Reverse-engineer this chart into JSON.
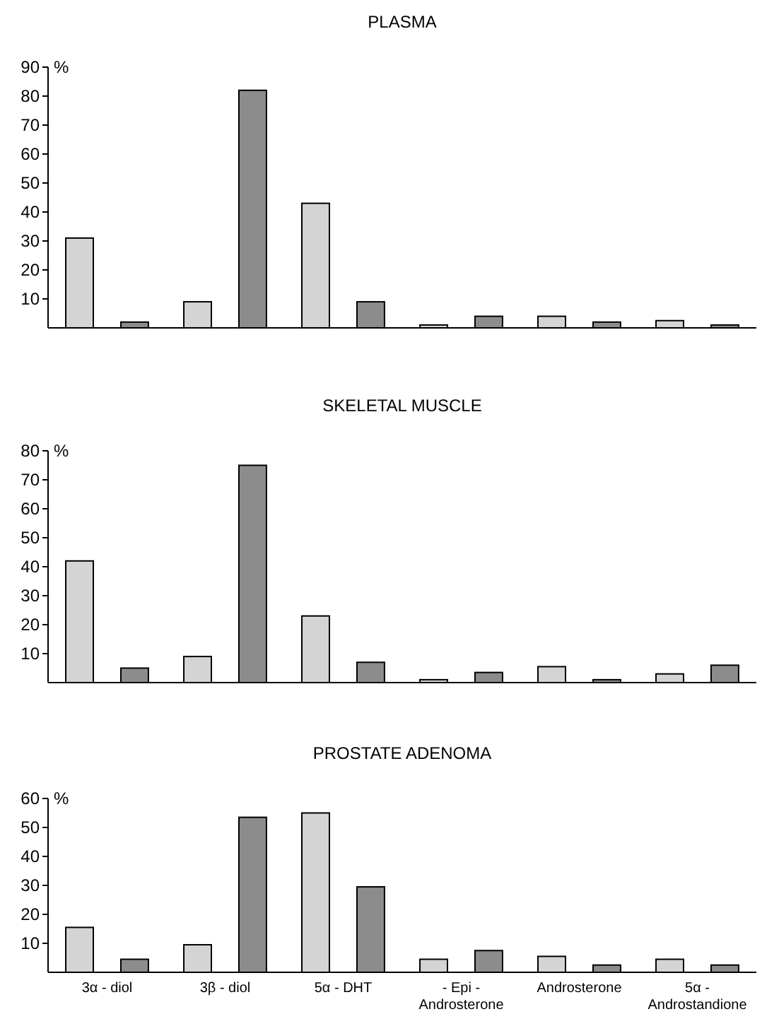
{
  "chart_data": [
    {
      "type": "bar",
      "title": "PLASMA",
      "ylabel": "%",
      "categories": [
        null,
        null,
        null,
        null,
        null,
        null
      ],
      "series": [
        {
          "color": "#d4d4d4",
          "values": [
            31,
            9,
            43,
            1,
            4,
            2.5
          ]
        },
        {
          "color": "#8c8c8c",
          "values": [
            2,
            82,
            9,
            4,
            2,
            1
          ]
        }
      ],
      "ylim": [
        0,
        90
      ],
      "yticks": [
        10,
        20,
        30,
        40,
        50,
        60,
        70,
        80,
        90
      ]
    },
    {
      "type": "bar",
      "title": "SKELETAL MUSCLE",
      "ylabel": "%",
      "categories": [
        null,
        null,
        null,
        null,
        null,
        null
      ],
      "series": [
        {
          "color": "#d4d4d4",
          "values": [
            42,
            9,
            23,
            1,
            5.5,
            3
          ]
        },
        {
          "color": "#8c8c8c",
          "values": [
            5,
            75,
            7,
            3.5,
            1,
            6
          ]
        }
      ],
      "ylim": [
        0,
        80
      ],
      "yticks": [
        10,
        20,
        30,
        40,
        50,
        60,
        70,
        80
      ]
    },
    {
      "type": "bar",
      "title": "PROSTATE ADENOMA",
      "ylabel": "%",
      "categories": [
        "3α - diol",
        "3β - diol",
        "5α - DHT",
        "- Epi - Androsterone",
        "Androsterone",
        "5α - Androstandione"
      ],
      "series": [
        {
          "color": "#d4d4d4",
          "values": [
            15.5,
            9.5,
            55,
            4.5,
            5.5,
            4.5
          ]
        },
        {
          "color": "#8c8c8c",
          "values": [
            4.5,
            53.5,
            29.5,
            7.5,
            2.5,
            2.5
          ]
        }
      ],
      "ylim": [
        0,
        60
      ],
      "yticks": [
        10,
        20,
        30,
        40,
        50,
        60
      ]
    }
  ]
}
